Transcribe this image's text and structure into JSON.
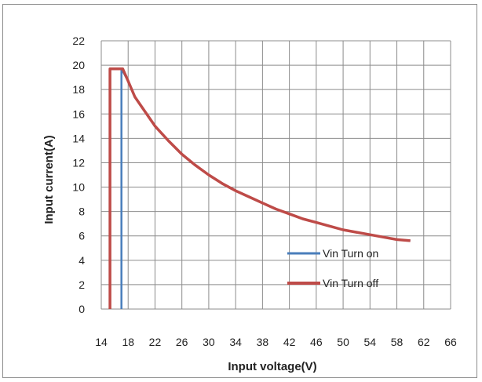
{
  "chart_data": {
    "type": "line",
    "title": "",
    "xlabel": "Input voltage(V)",
    "ylabel": "Input current(A)",
    "xlim": [
      14,
      66
    ],
    "ylim": [
      0,
      22
    ],
    "x_ticks": [
      14,
      18,
      22,
      26,
      30,
      34,
      38,
      42,
      46,
      50,
      54,
      58,
      62,
      66
    ],
    "y_ticks": [
      0,
      2,
      4,
      6,
      8,
      10,
      12,
      14,
      16,
      18,
      20,
      22
    ],
    "grid": true,
    "legend_position": "bottom-right",
    "series": [
      {
        "name": "Vin Turn on",
        "color": "#4a7ebb",
        "x": [
          17.0,
          17.0,
          17.0,
          18,
          19,
          20,
          22,
          24,
          26,
          28,
          30,
          32,
          34,
          36,
          38,
          40,
          42,
          44,
          46,
          48,
          50,
          52,
          54,
          56,
          58,
          60
        ],
        "y": [
          0,
          19.7,
          19.7,
          18.7,
          17.4,
          16.6,
          15.0,
          13.8,
          12.7,
          11.8,
          11.0,
          10.3,
          9.7,
          9.2,
          8.7,
          8.2,
          7.8,
          7.4,
          7.1,
          6.8,
          6.5,
          6.3,
          6.1,
          5.9,
          5.7,
          5.6
        ]
      },
      {
        "name": "Vin Turn off",
        "color": "#be4b48",
        "x": [
          15.3,
          15.3,
          17.2,
          18,
          19,
          20,
          22,
          24,
          26,
          28,
          30,
          32,
          34,
          36,
          38,
          40,
          42,
          44,
          46,
          48,
          50,
          52,
          54,
          56,
          58,
          60
        ],
        "y": [
          0,
          19.7,
          19.7,
          18.7,
          17.4,
          16.6,
          15.0,
          13.8,
          12.7,
          11.8,
          11.0,
          10.3,
          9.7,
          9.2,
          8.7,
          8.2,
          7.8,
          7.4,
          7.1,
          6.8,
          6.5,
          6.3,
          6.1,
          5.9,
          5.7,
          5.6
        ]
      }
    ]
  }
}
